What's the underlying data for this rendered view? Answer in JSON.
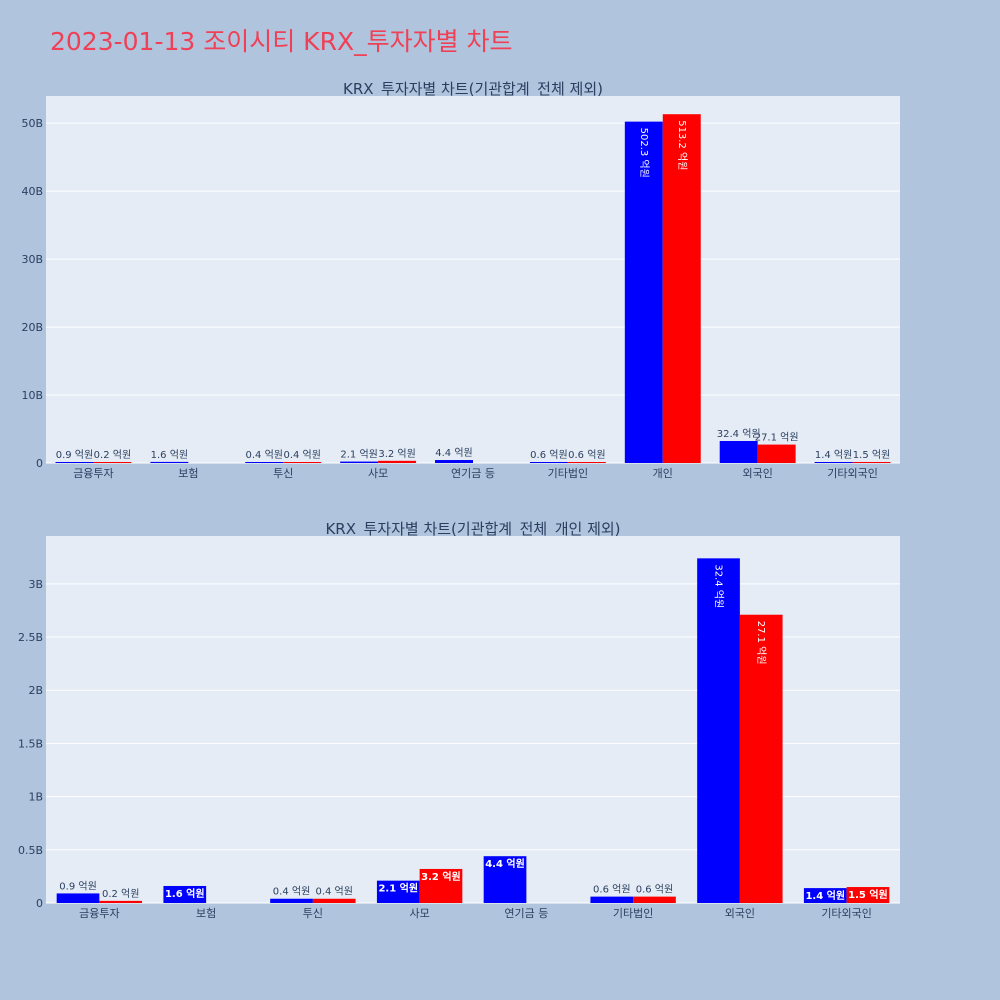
{
  "title": "2023-01-13 조이시티 KRX_투자자별 차트",
  "colors": {
    "buy": "#0000ff",
    "sell": "#ff0000",
    "plot_bg": "#e5ecf6",
    "page_bg": "#b0c4de",
    "title": "#ef4055"
  },
  "chart_data": [
    {
      "type": "bar",
      "title": "KRX_투자자별 차트(기관합계_전체 제외)",
      "categories": [
        "금융투자",
        "보험",
        "투신",
        "사모",
        "연기금 등",
        "기타법인",
        "개인",
        "외국인",
        "기타외국인"
      ],
      "series": [
        {
          "values": [
            0.09,
            0.16,
            0.04,
            0.21,
            0.44,
            0.06,
            50.23,
            3.24,
            0.14
          ],
          "labels": [
            "0.9 억원",
            "1.6 억원",
            "0.4 억원",
            "2.1 억원",
            "4.4 억원",
            "0.6 억원",
            "502.3 억원",
            "32.4 억원",
            "1.4 억원"
          ]
        },
        {
          "values": [
            0.02,
            0,
            0.04,
            0.32,
            0,
            0.06,
            51.32,
            2.71,
            0.15
          ],
          "labels": [
            "0.2 억원",
            "",
            "0.4 억원",
            "3.2 억원",
            "",
            "0.6 억원",
            "513.2 억원",
            "27.1 억원",
            "1.5 억원"
          ]
        }
      ],
      "ylim": [
        0,
        54
      ],
      "yticks": [
        0,
        10,
        20,
        30,
        40,
        50
      ],
      "ytick_labels": [
        "0",
        "10B",
        "20B",
        "30B",
        "40B",
        "50B"
      ],
      "grid": true
    },
    {
      "type": "bar",
      "title": "KRX_투자자별 차트(기관합계_전체_개인 제외)",
      "categories": [
        "금융투자",
        "보험",
        "투신",
        "사모",
        "연기금 등",
        "기타법인",
        "외국인",
        "기타외국인"
      ],
      "series": [
        {
          "values": [
            0.09,
            0.16,
            0.04,
            0.21,
            0.44,
            0.06,
            3.24,
            0.14
          ],
          "labels": [
            "0.9 억원",
            "1.6 억원",
            "0.4 억원",
            "2.1 억원",
            "4.4 억원",
            "0.6 억원",
            "32.4 억원",
            "1.4 억원"
          ]
        },
        {
          "values": [
            0.02,
            0,
            0.04,
            0.32,
            0,
            0.06,
            2.71,
            0.15
          ],
          "labels": [
            "0.2 억원",
            "",
            "0.4 억원",
            "3.2 억원",
            "",
            "0.6 억원",
            "27.1 억원",
            "1.5 억원"
          ]
        }
      ],
      "ylim": [
        0,
        3.45
      ],
      "yticks": [
        0,
        0.5,
        1,
        1.5,
        2,
        2.5,
        3
      ],
      "ytick_labels": [
        "0",
        "0.5B",
        "1B",
        "1.5B",
        "2B",
        "2.5B",
        "3B"
      ],
      "grid": true
    }
  ]
}
